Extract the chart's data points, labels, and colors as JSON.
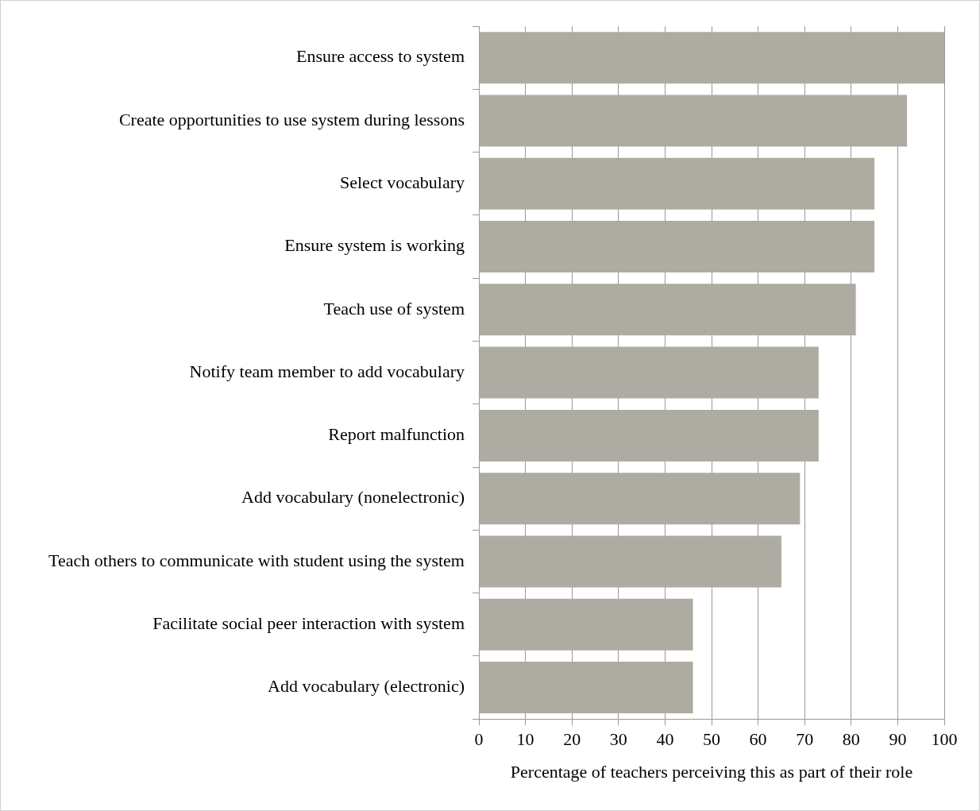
{
  "chart_data": {
    "type": "bar",
    "orientation": "horizontal",
    "categories": [
      "Ensure access to system",
      "Create opportunities to use system during lessons",
      "Select vocabulary",
      "Ensure system is working",
      "Teach use of system",
      "Notify team member to add vocabulary",
      "Report malfunction",
      "Add vocabulary (nonelectronic)",
      "Teach others to communicate with student using the system",
      "Facilitate social peer interaction with system",
      "Add vocabulary (electronic)"
    ],
    "values": [
      100,
      92,
      85,
      85,
      81,
      73,
      73,
      69,
      65,
      46,
      46
    ],
    "color": "#aeaca2",
    "xlabel": "Percentage of teachers perceiving this as part of their role",
    "xlim": [
      0,
      100
    ],
    "xticks": [
      0,
      10,
      20,
      30,
      40,
      50,
      60,
      70,
      80,
      90,
      100
    ],
    "grid": "x",
    "legend": false
  }
}
